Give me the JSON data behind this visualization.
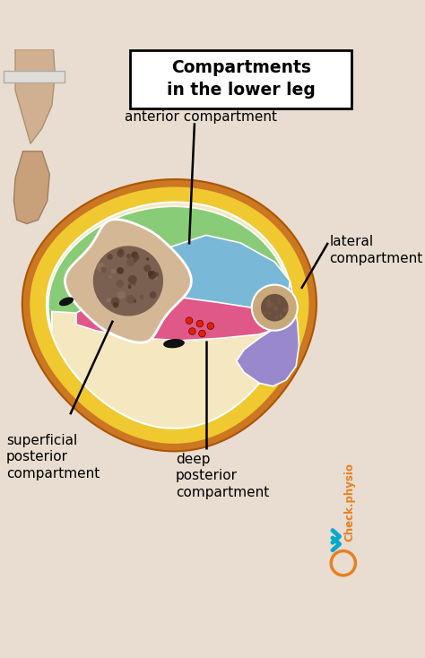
{
  "bg_color": "#e8ddd0",
  "title": "Compartments\nin the lower leg",
  "outer_orange": "#cc7722",
  "outer_yellow": "#f0c830",
  "anterior_color": "#7ab8d8",
  "lateral_color": "#9988cc",
  "superficial_color": "#88cc78",
  "deep_color": "#e05888",
  "bone_large_fill": "#d4b896",
  "bone_large_dark": "#6b5040",
  "bone_small_fill": "#c9a87a",
  "bone_small_dark": "#5a3820",
  "label_anterior": "anterior compartment",
  "label_lateral": "lateral\ncompartment",
  "label_superficial": "superficial\nposterior\ncompartment",
  "label_deep": "deep\nposterior\ncompartment",
  "watermark_color": "#e88020",
  "watermark_text": "Check.physio",
  "chevron_color": "#00aacc",
  "line_color": "black",
  "line_width": 1.8
}
